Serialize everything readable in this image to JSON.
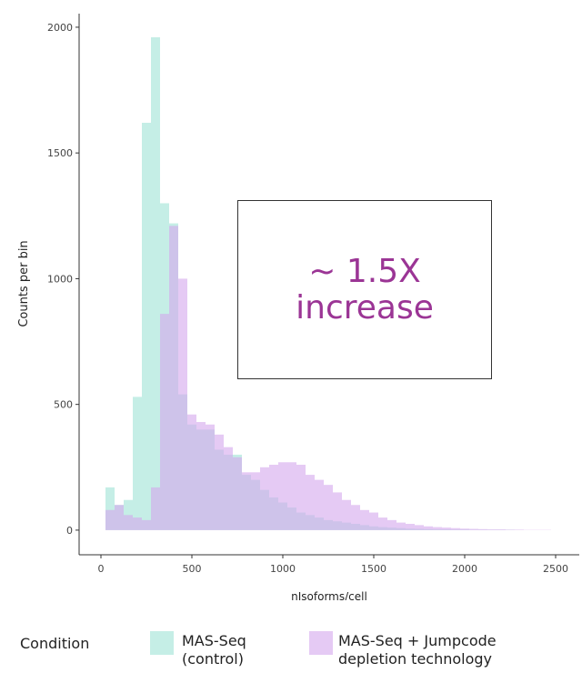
{
  "chart_data": {
    "type": "histogram",
    "x_label": "nIsoforms/cell",
    "y_label": "Counts per bin",
    "annotation": "~ 1.5X increase",
    "legend_title": "Condition",
    "bins": [
      25,
      75,
      125,
      175,
      225,
      275,
      325,
      375,
      425,
      475,
      525,
      575,
      625,
      675,
      725,
      775,
      825,
      875,
      925,
      975,
      1025,
      1075,
      1125,
      1175,
      1225,
      1275,
      1325,
      1375,
      1425,
      1475,
      1525,
      1575,
      1625,
      1675,
      1725,
      1775,
      1825,
      1875,
      1925,
      1975,
      2025,
      2075,
      2125,
      2175,
      2225,
      2275,
      2325,
      2375,
      2425,
      2475
    ],
    "series": [
      {
        "name": "MAS-Seq (control)",
        "color": "#9fe3d6",
        "counts": [
          170,
          100,
          120,
          530,
          1620,
          1960,
          1300,
          1220,
          540,
          420,
          400,
          400,
          320,
          300,
          300,
          220,
          200,
          160,
          130,
          110,
          90,
          70,
          60,
          50,
          40,
          35,
          30,
          25,
          20,
          15,
          12,
          10,
          8,
          6,
          5,
          4,
          3,
          3,
          2,
          2,
          1,
          1,
          1,
          1,
          1,
          0,
          0,
          0,
          0
        ]
      },
      {
        "name": "MAS-Seq + Jumpcode depletion technology",
        "color": "#d3a6ec",
        "counts": [
          80,
          100,
          60,
          50,
          40,
          170,
          860,
          1210,
          1000,
          460,
          430,
          420,
          380,
          330,
          290,
          230,
          230,
          250,
          260,
          270,
          270,
          260,
          220,
          200,
          180,
          150,
          120,
          100,
          80,
          70,
          50,
          40,
          30,
          25,
          20,
          15,
          12,
          10,
          8,
          6,
          5,
          4,
          3,
          3,
          2,
          2,
          1,
          1,
          1
        ]
      }
    ],
    "xlim": [
      -120,
      2630
    ],
    "xticks": [
      0,
      500,
      1000,
      1500,
      2000,
      2500
    ],
    "ylim": [
      -98,
      2054
    ],
    "yticks": [
      0,
      500,
      1000,
      1500,
      2000
    ]
  }
}
